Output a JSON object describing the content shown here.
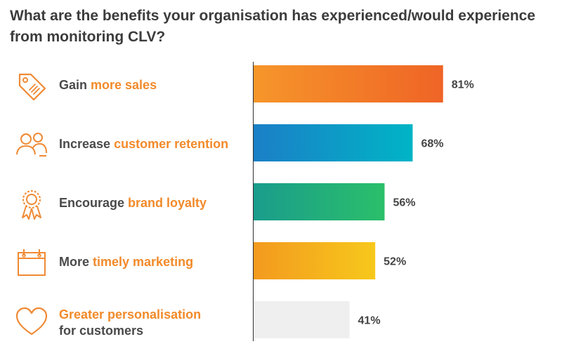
{
  "title": {
    "line1": "What are the benefits your organisation has experienced/would experience",
    "line2": "from monitoring CLV?"
  },
  "rows": [
    {
      "icon": "price-tag-icon",
      "label_plain": "Gain ",
      "label_highlight": "more sales",
      "label_line2": ""
    },
    {
      "icon": "customers-icon",
      "label_plain": "Increase ",
      "label_highlight": "customer retention",
      "label_line2": ""
    },
    {
      "icon": "award-ribbon-icon",
      "label_plain": "Encourage ",
      "label_highlight": "brand loyalty",
      "label_line2": ""
    },
    {
      "icon": "calendar-icon",
      "label_plain": "More ",
      "label_highlight": "timely marketing",
      "label_line2": ""
    },
    {
      "icon": "heart-icon",
      "label_plain": "",
      "label_highlight": "Greater personalisation",
      "label_line2": "for customers"
    }
  ],
  "chart_data": {
    "type": "bar",
    "orientation": "horizontal",
    "categories": [
      "Gain more sales",
      "Increase customer retention",
      "Encourage brand loyalty",
      "More timely marketing",
      "Greater personalisation for customers"
    ],
    "values": [
      81,
      68,
      56,
      52,
      41
    ],
    "value_labels": [
      "81%",
      "68%",
      "56%",
      "52%",
      "41%"
    ],
    "unit": "%",
    "xlim": [
      0,
      100
    ],
    "grid": false,
    "bar_gradients": [
      [
        "#f6962a",
        "#ef6426"
      ],
      [
        "#1b7fc7",
        "#00b4c6"
      ],
      [
        "#1a9c8c",
        "#2bbf6a"
      ],
      [
        "#f39a1f",
        "#f7c81b"
      ],
      [
        "#efefef",
        "#efefef"
      ]
    ],
    "colors": {
      "label_text": "#4a4a4a",
      "label_highlight": "#f28a2a",
      "icon": "#f08a35",
      "axis": "#2f2f2f"
    }
  }
}
